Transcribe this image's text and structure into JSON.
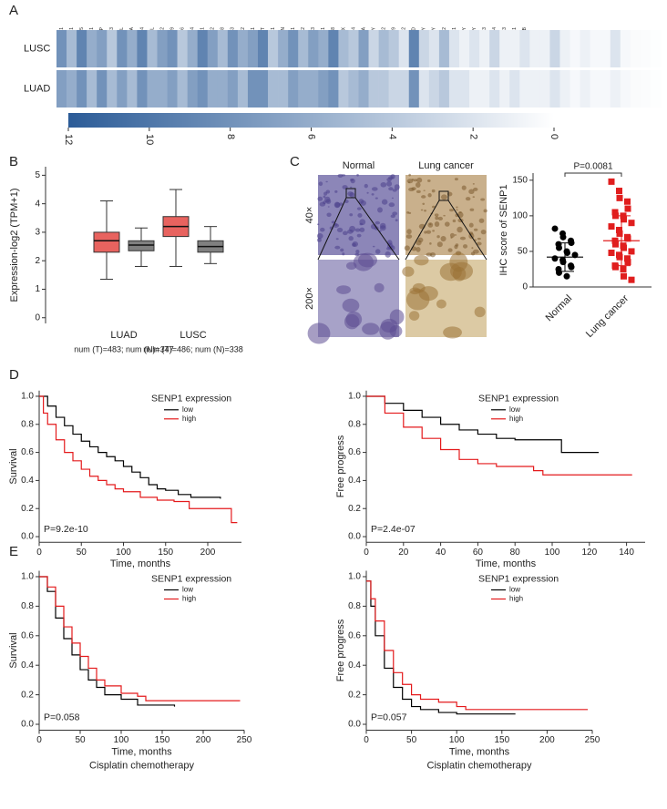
{
  "chart_data": [
    {
      "type": "heatmap",
      "panel": "A",
      "categories": [
        "ELF1",
        "HSPH1",
        "ALG5",
        "RPL21",
        "CDK2AP",
        "UBL3",
        "CLYBL",
        "RAP2A",
        "TMBIM4",
        "MCF2L",
        "PCID2",
        "TNFRSF19",
        "CDC16",
        "ATG14",
        "USPL1",
        "TPTE2",
        "CDK8",
        "WASF3",
        "GPR12",
        "CCNA1",
        "SPART",
        "EPSTI1",
        "POSTN",
        "TPT1",
        "CYSLTR2",
        "RFC3",
        "SENP1",
        "C14orf28",
        "USP27X",
        "FOXO4",
        "FAM205A",
        "EIF1AY",
        "HOXB2",
        "C14orf39",
        "HSFX2",
        "KDM5D",
        "TBL1Y",
        "TMSB4Y",
        "HSFY2",
        "HSFY1",
        "PRORY",
        "UTY",
        "DAZ3",
        "DAZ4",
        "TSPY3",
        "RBMY1A1",
        "RBMY1B",
        null,
        null,
        null,
        null,
        null,
        null,
        null,
        null,
        null,
        null,
        null,
        null,
        null
      ],
      "rows": [
        "LUSC",
        "LUAD"
      ],
      "values": [
        [
          8,
          5,
          9,
          6,
          7,
          4,
          8,
          6,
          9,
          5,
          7,
          8,
          4,
          6,
          9,
          7,
          5,
          8,
          6,
          7,
          9,
          4,
          6,
          8,
          5,
          7,
          6,
          9,
          5,
          4,
          7,
          3,
          5,
          4,
          2,
          9,
          3,
          2,
          5,
          2,
          1,
          2,
          1,
          3,
          1,
          1,
          2,
          1,
          1,
          3,
          1,
          0.5,
          1,
          0.5,
          0.5,
          2,
          0.5,
          0.3,
          0.2,
          0.1
        ],
        [
          7,
          6,
          8,
          5,
          8,
          5,
          7,
          5,
          8,
          6,
          6,
          7,
          5,
          7,
          8,
          6,
          6,
          7,
          5,
          8,
          8,
          5,
          5,
          7,
          6,
          6,
          7,
          8,
          4,
          5,
          6,
          4,
          4,
          3,
          3,
          8,
          2,
          3,
          4,
          2,
          2,
          1,
          1,
          2,
          1,
          2,
          1,
          1,
          1,
          2,
          1,
          0.5,
          1,
          0.5,
          0.5,
          1,
          0.5,
          0.3,
          0.2,
          0.1
        ]
      ],
      "clim": [
        12,
        0
      ],
      "cmap": [
        "#2b5b97",
        "#ffffff"
      ],
      "cticks": [
        12,
        10,
        8,
        6,
        4,
        2,
        0
      ]
    },
    {
      "type": "box",
      "panel": "B",
      "ylabel": "Expression-log2 (TPM+1)",
      "categories": [
        "LUAD",
        "LUSC"
      ],
      "notes": [
        "num (T)=483; num (N)=347",
        "num (T)=486; num (N)=338"
      ],
      "series": [
        {
          "color": "#e8635f",
          "whislo": [
            1.35,
            1.8
          ],
          "q1": [
            2.3,
            2.85
          ],
          "median": [
            2.7,
            3.2
          ],
          "q3": [
            3.0,
            3.55
          ],
          "whishi": [
            4.1,
            4.5
          ]
        },
        {
          "color": "#808080",
          "whislo": [
            1.8,
            1.9
          ],
          "q1": [
            2.35,
            2.3
          ],
          "median": [
            2.55,
            2.5
          ],
          "q3": [
            2.7,
            2.7
          ],
          "whishi": [
            3.15,
            3.2
          ]
        }
      ],
      "ylim": [
        -0.2,
        5.3
      ],
      "yticks": [
        0,
        1,
        2,
        3,
        4,
        5
      ]
    },
    {
      "type": "image",
      "panel": "C",
      "columns": [
        "Normal",
        "Lung cancer"
      ],
      "rows": [
        "40×",
        "200×"
      ]
    },
    {
      "type": "strip",
      "ylabel": "IHC score of SENP1",
      "categories": [
        "Normal",
        "Lung cancer"
      ],
      "series": [
        {
          "color": "#000000",
          "marker": "circle",
          "values": [
            82,
            75,
            70,
            65,
            62,
            60,
            55,
            50,
            48,
            45,
            40,
            38,
            35,
            30,
            28,
            25,
            20,
            15
          ]
        },
        {
          "color": "#e01e1e",
          "marker": "square",
          "values": [
            148,
            135,
            125,
            120,
            110,
            105,
            100,
            100,
            95,
            90,
            85,
            80,
            75,
            70,
            68,
            65,
            60,
            58,
            55,
            50,
            48,
            45,
            42,
            40,
            35,
            30,
            28,
            25,
            15,
            10
          ]
        }
      ],
      "means": [
        42,
        65
      ],
      "sd": [
        20,
        35
      ],
      "annotation": "P=0.0081",
      "ylim": [
        0,
        160
      ],
      "yticks": [
        0,
        50,
        100,
        150
      ]
    },
    {
      "type": "km",
      "panel": "D",
      "ylabel": "Survival",
      "xlabel": "Time, months",
      "legend_title": "SENP1 expression",
      "annotation": "P=9.2e-10",
      "series": [
        {
          "name": "low",
          "color": "#000000",
          "x": [
            0,
            10,
            20,
            30,
            40,
            50,
            60,
            70,
            80,
            90,
            100,
            110,
            120,
            130,
            140,
            150,
            165,
            180,
            215
          ],
          "values": [
            1,
            0.93,
            0.85,
            0.79,
            0.73,
            0.68,
            0.64,
            0.6,
            0.57,
            0.54,
            0.5,
            0.46,
            0.42,
            0.37,
            0.34,
            0.33,
            0.3,
            0.28,
            0.27
          ]
        },
        {
          "name": "high",
          "color": "#e41a1c",
          "x": [
            0,
            5,
            10,
            20,
            30,
            40,
            50,
            60,
            70,
            80,
            90,
            100,
            120,
            140,
            160,
            178,
            228,
            235
          ],
          "values": [
            1,
            0.88,
            0.8,
            0.69,
            0.6,
            0.54,
            0.48,
            0.43,
            0.4,
            0.37,
            0.34,
            0.32,
            0.28,
            0.26,
            0.25,
            0.2,
            0.1,
            0.1
          ]
        }
      ],
      "xlim": [
        0,
        240
      ],
      "xticks": [
        0,
        50,
        100,
        150,
        200
      ],
      "ylim": [
        -0.04,
        1.04
      ],
      "yticks": [
        {
          "value": 0,
          "label": "0.0"
        },
        0.2,
        0.4,
        0.6,
        0.8,
        {
          "value": 1,
          "label": "1.0"
        }
      ]
    },
    {
      "type": "km",
      "ylabel": "Free progress",
      "xlabel": "Time, months",
      "legend_title": "SENP1 expression",
      "annotation": "P=2.4e-07",
      "series": [
        {
          "name": "low",
          "color": "#000000",
          "x": [
            0,
            10,
            20,
            30,
            40,
            50,
            60,
            70,
            80,
            100,
            105,
            125
          ],
          "values": [
            1,
            0.95,
            0.9,
            0.85,
            0.8,
            0.76,
            0.73,
            0.7,
            0.69,
            0.69,
            0.6,
            0.6
          ]
        },
        {
          "name": "high",
          "color": "#e41a1c",
          "x": [
            0,
            10,
            20,
            30,
            40,
            50,
            60,
            70,
            80,
            90,
            95,
            143
          ],
          "values": [
            1,
            0.88,
            0.78,
            0.7,
            0.62,
            0.55,
            0.52,
            0.5,
            0.5,
            0.47,
            0.44,
            0.44
          ]
        }
      ],
      "xlim": [
        0,
        150
      ],
      "xticks": [
        0,
        20,
        40,
        60,
        80,
        100,
        120,
        140
      ],
      "ylim": [
        -0.04,
        1.04
      ],
      "yticks": [
        {
          "value": 0,
          "label": "0.0"
        },
        0.2,
        0.4,
        0.6,
        0.8,
        {
          "value": 1,
          "label": "1.0"
        }
      ]
    },
    {
      "type": "km",
      "panel": "E",
      "ylabel": "Survival",
      "xlabel": "Time, months",
      "subtitle": "Cisplatin chemotherapy",
      "legend_title": "SENP1 expression",
      "annotation": "P=0.058",
      "series": [
        {
          "name": "low",
          "color": "#000000",
          "x": [
            0,
            10,
            20,
            30,
            40,
            50,
            60,
            70,
            80,
            100,
            120,
            165
          ],
          "values": [
            1,
            0.9,
            0.72,
            0.58,
            0.47,
            0.37,
            0.3,
            0.25,
            0.2,
            0.17,
            0.13,
            0.12
          ]
        },
        {
          "name": "high",
          "color": "#e41a1c",
          "x": [
            0,
            10,
            20,
            30,
            40,
            50,
            60,
            70,
            80,
            100,
            120,
            130,
            245
          ],
          "values": [
            1,
            0.93,
            0.8,
            0.66,
            0.55,
            0.46,
            0.38,
            0.3,
            0.26,
            0.21,
            0.19,
            0.16,
            0.16
          ]
        }
      ],
      "xlim": [
        0,
        250
      ],
      "xticks": [
        0,
        50,
        100,
        150,
        200,
        250
      ],
      "ylim": [
        -0.04,
        1.04
      ],
      "yticks": [
        {
          "value": 0,
          "label": "0.0"
        },
        0.2,
        0.4,
        0.6,
        0.8,
        {
          "value": 1,
          "label": "1.0"
        }
      ]
    },
    {
      "type": "km",
      "ylabel": "Free progress",
      "xlabel": "Time, months",
      "subtitle": "Cisplatin chemotherapy",
      "legend_title": "SENP1 expression",
      "annotation": "P=0.057",
      "series": [
        {
          "name": "low",
          "color": "#000000",
          "x": [
            0,
            5,
            10,
            20,
            30,
            40,
            50,
            60,
            80,
            100,
            165
          ],
          "values": [
            0.97,
            0.8,
            0.6,
            0.38,
            0.25,
            0.17,
            0.12,
            0.1,
            0.08,
            0.07,
            0.07
          ]
        },
        {
          "name": "high",
          "color": "#e41a1c",
          "x": [
            0,
            5,
            10,
            20,
            30,
            40,
            50,
            60,
            80,
            100,
            110,
            245
          ],
          "values": [
            0.97,
            0.85,
            0.7,
            0.5,
            0.35,
            0.27,
            0.2,
            0.17,
            0.15,
            0.12,
            0.1,
            0.1
          ]
        }
      ],
      "xlim": [
        0,
        250
      ],
      "xticks": [
        0,
        50,
        100,
        150,
        200,
        250
      ],
      "ylim": [
        -0.04,
        1.04
      ],
      "yticks": [
        {
          "value": 0,
          "label": "0.0"
        },
        0.2,
        0.4,
        0.6,
        0.8,
        {
          "value": 1,
          "label": "1.0"
        }
      ]
    }
  ]
}
